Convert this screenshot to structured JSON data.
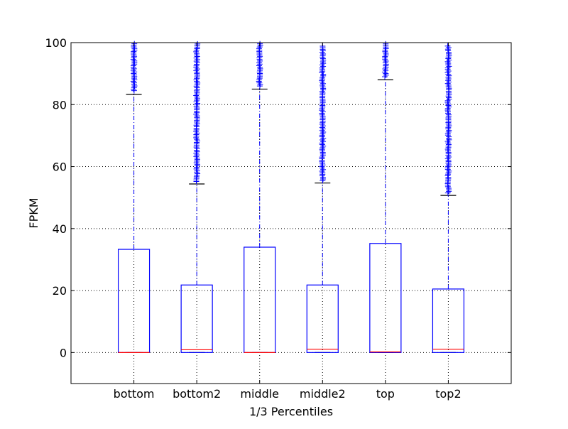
{
  "chart_data": {
    "type": "boxplot",
    "title": "",
    "xlabel": "1/3 Percentiles",
    "ylabel": "FPKM",
    "ylim": [
      -10,
      100
    ],
    "yticks": [
      "0",
      "20",
      "40",
      "60",
      "80",
      "100"
    ],
    "ytick_values": [
      0,
      20,
      40,
      60,
      80,
      100
    ],
    "grid": true,
    "categories": [
      "bottom",
      "bottom2",
      "middle",
      "middle2",
      "top",
      "top2"
    ],
    "boxes": [
      {
        "label": "bottom",
        "q1": 0,
        "median": 0,
        "q3": 33.3,
        "whisker_low": 0,
        "whisker_high": 83.3,
        "outlier_min": 84.5,
        "outlier_max": 100
      },
      {
        "label": "bottom2",
        "q1": 0,
        "median": 0.9,
        "q3": 21.8,
        "whisker_low": 0,
        "whisker_high": 54.4,
        "outlier_min": 55.2,
        "outlier_max": 100
      },
      {
        "label": "middle",
        "q1": 0,
        "median": 0,
        "q3": 34.0,
        "whisker_low": 0,
        "whisker_high": 85.0,
        "outlier_min": 86.0,
        "outlier_max": 100
      },
      {
        "label": "middle2",
        "q1": 0,
        "median": 1.1,
        "q3": 21.8,
        "whisker_low": 0,
        "whisker_high": 54.7,
        "outlier_min": 55.5,
        "outlier_max": 99
      },
      {
        "label": "top",
        "q1": 0,
        "median": 0.2,
        "q3": 35.2,
        "whisker_low": 0,
        "whisker_high": 88.0,
        "outlier_min": 89.0,
        "outlier_max": 100
      },
      {
        "label": "top2",
        "q1": 0,
        "median": 1.1,
        "q3": 20.5,
        "whisker_low": 0,
        "whisker_high": 50.7,
        "outlier_min": 51.5,
        "outlier_max": 99
      }
    ],
    "colors": {
      "box": "#0000ff",
      "median": "#ff0000",
      "whisker": "#0000ff",
      "cap": "#000000",
      "outlier": "#0000ff",
      "grid": "#000000"
    }
  }
}
